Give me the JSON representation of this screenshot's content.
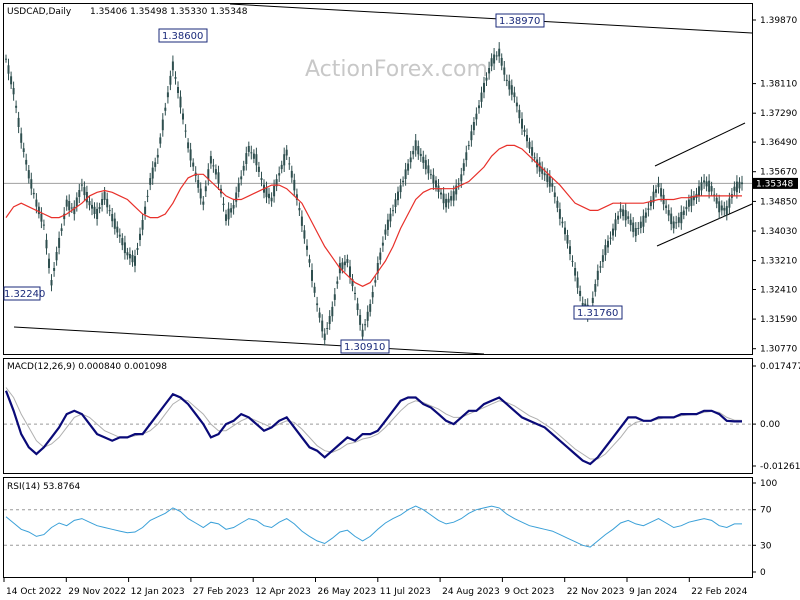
{
  "header": {
    "symbol": "USDCAD,Daily",
    "ohlc": "1.35406 1.35498 1.35330 1.35348"
  },
  "watermark": "ActionForex.com",
  "colors": {
    "candle": "#2f4f4f",
    "ma": "#e8302a",
    "channel": "#000000",
    "macd_line": "#0a0a78",
    "macd_signal": "#b0b0b0",
    "rsi_line": "#3aa0d8",
    "label_border": "#1a2a7a",
    "grid_dashed": "#9a9a9a"
  },
  "chart_data": [
    {
      "type": "line",
      "title": "USDCAD,Daily",
      "subtitle": "1.35406 1.35498 1.35330 1.35348",
      "grid": false,
      "ylim": [
        1.3068,
        1.3987
      ],
      "y_ticks": [
        "1.39870",
        "1.38110",
        "1.37290",
        "1.36490",
        "1.35670",
        "1.34850",
        "1.34030",
        "1.33210",
        "1.32410",
        "1.31590",
        "1.30770"
      ],
      "current_price_label": "1.35348",
      "current_price": 1.35348,
      "x_tick_labels": [
        "14 Oct 2022",
        "29 Nov 2022",
        "12 Jan 2023",
        "27 Feb 2023",
        "12 Apr 2023",
        "26 May 2023",
        "11 Jul 2023",
        "24 Aug 2023",
        "9 Oct 2023",
        "22 Nov 2023",
        "9 Jan 2024",
        "22 Feb 2024"
      ],
      "series": [
        {
          "kind": "close_path",
          "values": [
            1.388,
            1.379,
            1.366,
            1.356,
            1.348,
            1.342,
            1.326,
            1.337,
            1.348,
            1.346,
            1.353,
            1.348,
            1.345,
            1.35,
            1.344,
            1.339,
            1.334,
            1.332,
            1.342,
            1.354,
            1.361,
            1.374,
            1.386,
            1.376,
            1.364,
            1.356,
            1.348,
            1.36,
            1.355,
            1.344,
            1.347,
            1.355,
            1.363,
            1.36,
            1.352,
            1.349,
            1.356,
            1.362,
            1.353,
            1.343,
            1.332,
            1.32,
            1.311,
            1.318,
            1.33,
            1.332,
            1.323,
            1.312,
            1.319,
            1.33,
            1.34,
            1.346,
            1.352,
            1.358,
            1.364,
            1.36,
            1.356,
            1.352,
            1.348,
            1.35,
            1.355,
            1.364,
            1.372,
            1.38,
            1.387,
            1.3897,
            1.382,
            1.378,
            1.37,
            1.364,
            1.359,
            1.356,
            1.353,
            1.345,
            1.338,
            1.329,
            1.32,
            1.3176,
            1.328,
            1.335,
            1.34,
            1.346,
            1.344,
            1.34,
            1.343,
            1.348,
            1.353,
            1.347,
            1.342,
            1.344,
            1.348,
            1.35,
            1.354,
            1.352,
            1.347,
            1.346,
            1.352,
            1.3535
          ]
        },
        {
          "kind": "moving_average",
          "values": [
            1.344,
            1.347,
            1.348,
            1.347,
            1.346,
            1.345,
            1.344,
            1.344,
            1.345,
            1.3465,
            1.348,
            1.35,
            1.351,
            1.3515,
            1.351,
            1.35,
            1.349,
            1.347,
            1.345,
            1.344,
            1.344,
            1.345,
            1.348,
            1.352,
            1.355,
            1.356,
            1.356,
            1.354,
            1.352,
            1.35,
            1.349,
            1.349,
            1.35,
            1.351,
            1.352,
            1.353,
            1.353,
            1.352,
            1.35,
            1.348,
            1.344,
            1.34,
            1.336,
            1.333,
            1.33,
            1.328,
            1.326,
            1.325,
            1.326,
            1.329,
            1.332,
            1.336,
            1.341,
            1.345,
            1.349,
            1.351,
            1.352,
            1.352,
            1.352,
            1.352,
            1.353,
            1.354,
            1.356,
            1.358,
            1.361,
            1.363,
            1.364,
            1.364,
            1.363,
            1.361,
            1.359,
            1.357,
            1.355,
            1.353,
            1.3505,
            1.348,
            1.347,
            1.346,
            1.346,
            1.347,
            1.348,
            1.348,
            1.348,
            1.348,
            1.348,
            1.3485,
            1.349,
            1.349,
            1.349,
            1.3495,
            1.3495,
            1.35,
            1.35,
            1.35,
            1.35,
            1.35,
            1.35,
            1.35
          ]
        }
      ],
      "annotations": [
        "1.38600",
        "1.38970",
        "1.32240",
        "1.30910",
        "1.31760"
      ]
    },
    {
      "type": "line",
      "title": "MACD(12,26,9) 0.000840 0.001098",
      "ylim": [
        -0.01261,
        0.01747
      ],
      "y_ticks": [
        "0.017477",
        "0.00",
        "-0.01261"
      ],
      "series": [
        {
          "name": "MACD",
          "values": [
            0.01,
            0.004,
            -0.003,
            -0.007,
            -0.009,
            -0.007,
            -0.004,
            -0.001,
            0.003,
            0.004,
            0.003,
            0.0,
            -0.003,
            -0.004,
            -0.005,
            -0.004,
            -0.004,
            -0.003,
            -0.003,
            0.0,
            0.003,
            0.006,
            0.009,
            0.008,
            0.006,
            0.003,
            0.0,
            -0.004,
            -0.003,
            0.0,
            0.001,
            0.003,
            0.002,
            0.0,
            -0.002,
            -0.001,
            0.001,
            0.002,
            -0.001,
            -0.004,
            -0.007,
            -0.008,
            -0.01,
            -0.008,
            -0.006,
            -0.004,
            -0.005,
            -0.003,
            -0.003,
            -0.002,
            0.001,
            0.004,
            0.007,
            0.008,
            0.008,
            0.006,
            0.005,
            0.003,
            0.001,
            0.0,
            0.002,
            0.004,
            0.004,
            0.006,
            0.007,
            0.008,
            0.006,
            0.004,
            0.002,
            0.001,
            0.0,
            -0.001,
            -0.003,
            -0.005,
            -0.007,
            -0.009,
            -0.011,
            -0.012,
            -0.01,
            -0.007,
            -0.004,
            -0.001,
            0.002,
            0.002,
            0.001,
            0.001,
            0.002,
            0.002,
            0.002,
            0.003,
            0.003,
            0.003,
            0.004,
            0.004,
            0.003,
            0.001,
            0.0008,
            0.0008
          ]
        },
        {
          "name": "Signal",
          "values": [
            0.011,
            0.008,
            0.003,
            -0.001,
            -0.005,
            -0.007,
            -0.006,
            -0.004,
            -0.001,
            0.002,
            0.003,
            0.002,
            0.0,
            -0.002,
            -0.003,
            -0.004,
            -0.004,
            -0.0035,
            -0.003,
            -0.002,
            0.0,
            0.003,
            0.006,
            0.0075,
            0.007,
            0.005,
            0.003,
            0.0,
            -0.002,
            -0.002,
            -0.0005,
            0.001,
            0.002,
            0.001,
            0.0,
            -0.001,
            0.0,
            0.001,
            0.0005,
            -0.0015,
            -0.004,
            -0.0065,
            -0.008,
            -0.0085,
            -0.0075,
            -0.006,
            -0.0055,
            -0.0045,
            -0.004,
            -0.003,
            -0.001,
            0.0015,
            0.004,
            0.006,
            0.007,
            0.0065,
            0.0055,
            0.0045,
            0.003,
            0.002,
            0.002,
            0.003,
            0.004,
            0.005,
            0.006,
            0.007,
            0.0065,
            0.0055,
            0.004,
            0.0025,
            0.0015,
            0.0,
            -0.0015,
            -0.0035,
            -0.0055,
            -0.0075,
            -0.009,
            -0.0105,
            -0.0105,
            -0.009,
            -0.0065,
            -0.004,
            -0.001,
            0.0005,
            0.001,
            0.001,
            0.0015,
            0.002,
            0.002,
            0.0025,
            0.0028,
            0.003,
            0.0035,
            0.0038,
            0.0035,
            0.002,
            0.0012,
            0.0011
          ]
        }
      ]
    },
    {
      "type": "line",
      "title": "RSI(14) 53.8764",
      "ylim": [
        0,
        100
      ],
      "y_ticks": [
        "100",
        "70",
        "30",
        "0"
      ],
      "levels": [
        70,
        30
      ],
      "series": [
        {
          "name": "RSI",
          "values": [
            62,
            55,
            48,
            45,
            40,
            42,
            50,
            55,
            52,
            58,
            60,
            56,
            52,
            50,
            48,
            46,
            44,
            45,
            50,
            58,
            62,
            66,
            72,
            68,
            60,
            55,
            50,
            56,
            54,
            48,
            50,
            55,
            60,
            58,
            52,
            50,
            56,
            60,
            54,
            46,
            40,
            35,
            32,
            38,
            45,
            47,
            40,
            35,
            40,
            48,
            55,
            60,
            64,
            70,
            74,
            70,
            64,
            58,
            54,
            56,
            60,
            66,
            70,
            72,
            74,
            72,
            65,
            60,
            56,
            52,
            50,
            48,
            46,
            42,
            38,
            34,
            30,
            28,
            35,
            42,
            48,
            55,
            58,
            54,
            52,
            56,
            60,
            55,
            50,
            52,
            56,
            58,
            60,
            58,
            52,
            50,
            54,
            54
          ]
        }
      ]
    }
  ]
}
